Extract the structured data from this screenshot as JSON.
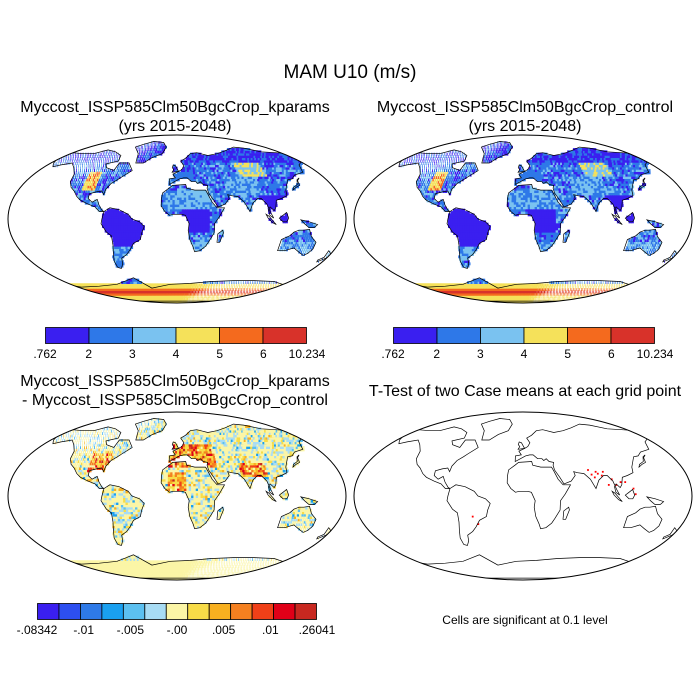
{
  "figure": {
    "title": "MAM U10 (m/s)"
  },
  "panels": [
    {
      "title_line1": "Myccost_ISSP585Clm50BgcCrop_kparams",
      "title_line2": "(yrs 2015-2048)",
      "field": "mean-u10"
    },
    {
      "title_line1": "Myccost_ISSP585Clm50BgcCrop_control",
      "title_line2": "(yrs 2015-2048)",
      "field": "mean-u10"
    },
    {
      "title_line1": "Myccost_ISSP585Clm50BgcCrop_kparams",
      "title_line2": "- Myccost_ISSP585Clm50BgcCrop_control",
      "field": "difference"
    },
    {
      "title_line1": "T-Test of two Case means at each grid point",
      "note": "Cells are significant at 0.1 level",
      "field": "ttest"
    }
  ],
  "colorbar_mean": {
    "colors": [
      "#3a1ff0",
      "#2e78e8",
      "#7ac2f0",
      "#f5e15a",
      "#f46a1e",
      "#d8322a"
    ],
    "labels": [
      ".762",
      "2",
      "3",
      "4",
      "5",
      "6",
      "10.234"
    ]
  },
  "colorbar_diff": {
    "colors": [
      "#3a1ff0",
      "#2d4ff0",
      "#2e7ae8",
      "#1aa0f0",
      "#5cc0f0",
      "#a8dcf4",
      "#fbf5a6",
      "#f8dc48",
      "#f8b020",
      "#f48020",
      "#f04018",
      "#e00018",
      "#c82820"
    ],
    "labels": [
      "-.08342",
      "-.01",
      "-.005",
      "-.00",
      ".005",
      ".01",
      ".26041"
    ]
  },
  "ttest": {
    "significant_color": "#ff0000"
  }
}
